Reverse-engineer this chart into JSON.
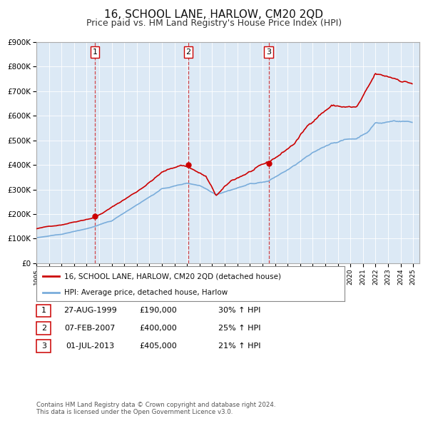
{
  "title": "16, SCHOOL LANE, HARLOW, CM20 2QD",
  "subtitle": "Price paid vs. HM Land Registry's House Price Index (HPI)",
  "title_fontsize": 11,
  "subtitle_fontsize": 9,
  "background_color": "#ffffff",
  "plot_bg_color": "#dce9f5",
  "ylim": [
    0,
    900000
  ],
  "yticks": [
    0,
    100000,
    200000,
    300000,
    400000,
    500000,
    600000,
    700000,
    800000,
    900000
  ],
  "ytick_labels": [
    "£0",
    "£100K",
    "£200K",
    "£300K",
    "£400K",
    "£500K",
    "£600K",
    "£700K",
    "£800K",
    "£900K"
  ],
  "xlim_start": 1995.0,
  "xlim_end": 2025.5,
  "xtick_years": [
    1995,
    1996,
    1997,
    1998,
    1999,
    2000,
    2001,
    2002,
    2003,
    2004,
    2005,
    2006,
    2007,
    2008,
    2009,
    2010,
    2011,
    2012,
    2013,
    2014,
    2015,
    2016,
    2017,
    2018,
    2019,
    2020,
    2021,
    2022,
    2023,
    2024,
    2025
  ],
  "sale_color": "#cc0000",
  "hpi_color": "#7aaddb",
  "sale_linewidth": 1.2,
  "hpi_linewidth": 1.2,
  "sale_label": "16, SCHOOL LANE, HARLOW, CM20 2QD (detached house)",
  "hpi_label": "HPI: Average price, detached house, Harlow",
  "transactions": [
    {
      "num": 1,
      "date_str": "27-AUG-1999",
      "date_x": 1999.65,
      "price": 190000,
      "pct": "30%",
      "dir": "↑"
    },
    {
      "num": 2,
      "date_str": "07-FEB-2007",
      "date_x": 2007.1,
      "price": 400000,
      "pct": "25%",
      "dir": "↑"
    },
    {
      "num": 3,
      "date_str": "01-JUL-2013",
      "date_x": 2013.5,
      "price": 405000,
      "pct": "21%",
      "dir": "↑"
    }
  ],
  "vline_color": "#cc0000",
  "grid_color": "#ffffff",
  "footer_line1": "Contains HM Land Registry data © Crown copyright and database right 2024.",
  "footer_line2": "This data is licensed under the Open Government Licence v3.0."
}
